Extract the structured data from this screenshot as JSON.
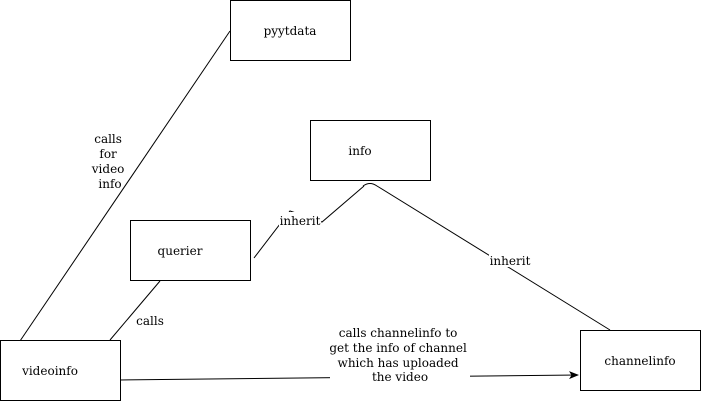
{
  "nodes": {
    "pyytdata": "pyytdata",
    "info": "info",
    "querier": "querier",
    "videoinfo": "videoinfo",
    "channelinfo": "channelinfo"
  },
  "edges": {
    "videoinfo_pyytdata": [
      "calls",
      "for",
      "video",
      "info"
    ],
    "videoinfo_querier": "calls",
    "querier_info": "inherit",
    "channelinfo_info": "inherit",
    "videoinfo_channelinfo": [
      "calls channelinfo to",
      "get the info of channel",
      "which has uploaded",
      "the video"
    ]
  },
  "colors": {
    "stroke": "#000000",
    "fill": "#ffffff",
    "text": "#000000"
  }
}
